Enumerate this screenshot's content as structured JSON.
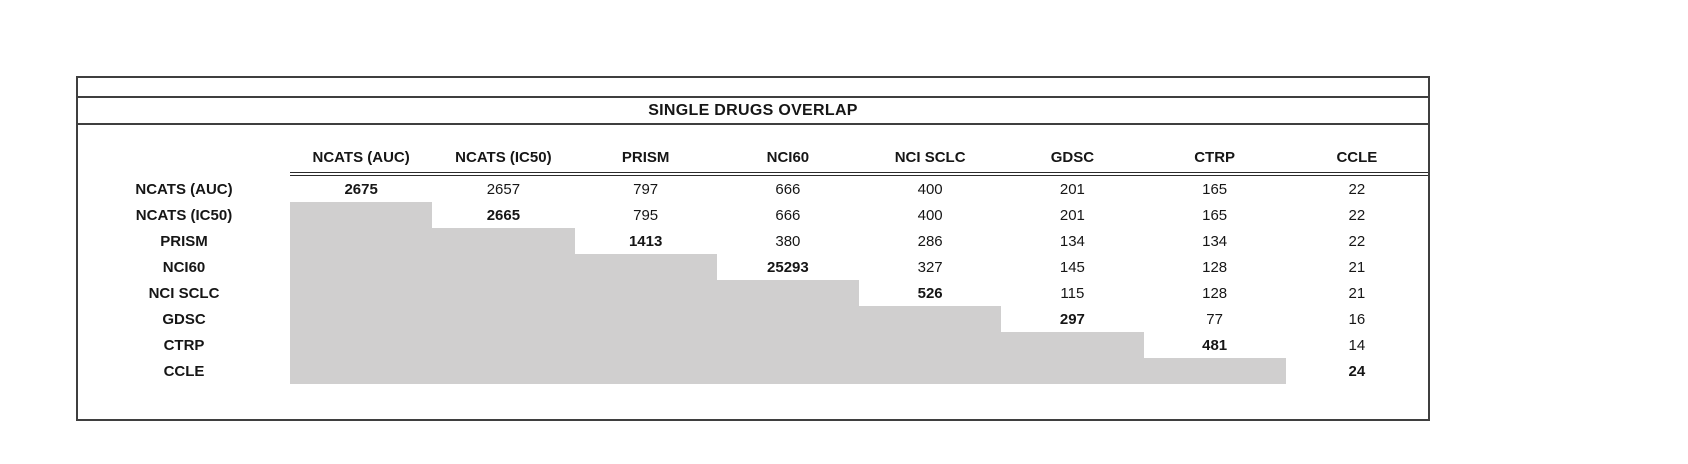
{
  "colors": {
    "shade": "#d0cfcf",
    "border": "#3f3f3f",
    "header_rule": "#2b2b2b",
    "text": "#161616",
    "background": "#ffffff"
  },
  "chart_data": {
    "type": "table",
    "title": "SINGLE DRUGS OVERLAP",
    "columns": [
      "NCATS (AUC)",
      "NCATS (IC50)",
      "PRISM",
      "NCI60",
      "NCI SCLC",
      "GDSC",
      "CTRP",
      "CCLE"
    ],
    "rows": [
      {
        "label": "NCATS (AUC)",
        "values": [
          2675,
          2657,
          797,
          666,
          400,
          201,
          165,
          22
        ]
      },
      {
        "label": "NCATS (IC50)",
        "values": [
          null,
          2665,
          795,
          666,
          400,
          201,
          165,
          22
        ]
      },
      {
        "label": "PRISM",
        "values": [
          null,
          null,
          1413,
          380,
          286,
          134,
          134,
          22
        ]
      },
      {
        "label": "NCI60",
        "values": [
          null,
          null,
          null,
          25293,
          327,
          145,
          128,
          21
        ]
      },
      {
        "label": "NCI SCLC",
        "values": [
          null,
          null,
          null,
          null,
          526,
          115,
          128,
          21
        ]
      },
      {
        "label": "GDSC",
        "values": [
          null,
          null,
          null,
          null,
          null,
          297,
          77,
          16
        ]
      },
      {
        "label": "CTRP",
        "values": [
          null,
          null,
          null,
          null,
          null,
          null,
          481,
          14
        ]
      },
      {
        "label": "CCLE",
        "values": [
          null,
          null,
          null,
          null,
          null,
          null,
          null,
          24
        ]
      }
    ],
    "layout": {
      "diagonal": "bold",
      "lower_triangle": "shaded-gray-blank",
      "header_rule": "double-line-under-column-headers"
    }
  }
}
